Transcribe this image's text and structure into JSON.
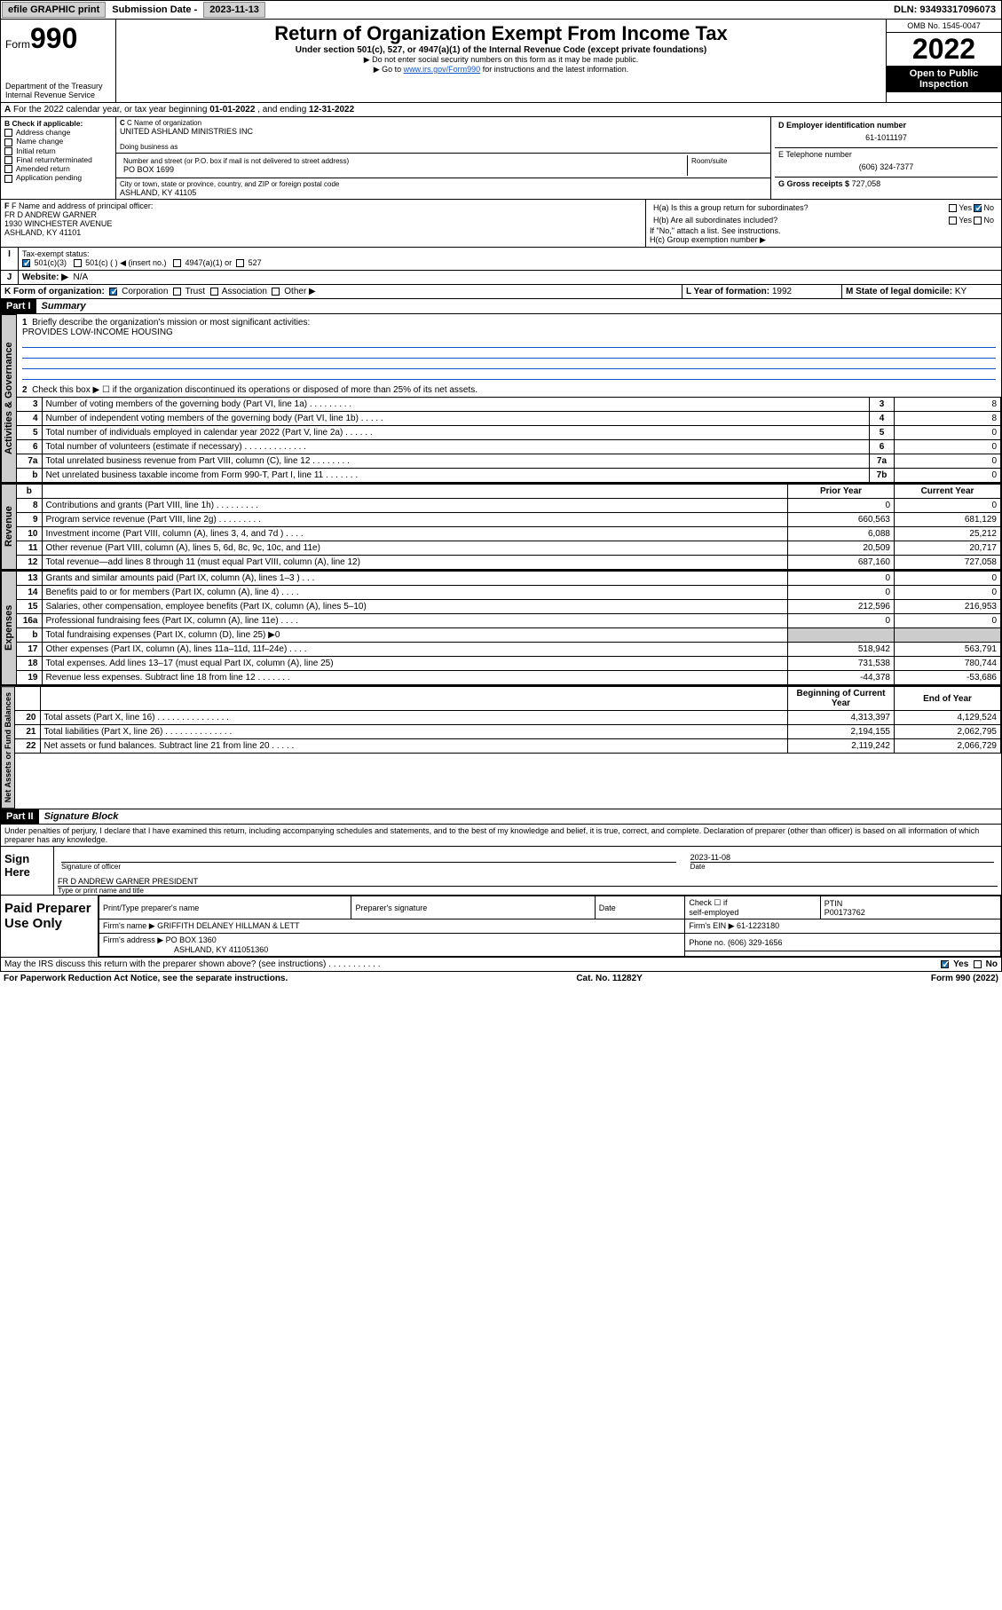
{
  "topbar": {
    "efile": "efile GRAPHIC print",
    "sub_label": "Submission Date -",
    "sub_date": "2023-11-13",
    "dln_label": "DLN:",
    "dln": "93493317096073"
  },
  "header": {
    "form_word": "Form",
    "form_num": "990",
    "title": "Return of Organization Exempt From Income Tax",
    "subtitle": "Under section 501(c), 527, or 4947(a)(1) of the Internal Revenue Code (except private foundations)",
    "note1": "▶ Do not enter social security numbers on this form as it may be made public.",
    "note2_pre": "▶ Go to ",
    "note2_link": "www.irs.gov/Form990",
    "note2_post": " for instructions and the latest information.",
    "dept": "Department of the Treasury",
    "irs": "Internal Revenue Service",
    "omb": "OMB No. 1545-0047",
    "year": "2022",
    "inspect": "Open to Public Inspection"
  },
  "A": {
    "text": "For the 2022 calendar year, or tax year beginning ",
    "begin": "01-01-2022",
    "mid": " , and ending ",
    "end": "12-31-2022"
  },
  "B": {
    "label": "B Check if applicable:",
    "opts": [
      "Address change",
      "Name change",
      "Initial return",
      "Final return/terminated",
      "Amended return",
      "Application pending"
    ]
  },
  "C": {
    "name_label": "C Name of organization",
    "name": "UNITED ASHLAND MINISTRIES INC",
    "dba_label": "Doing business as",
    "dba": "",
    "street_label": "Number and street (or P.O. box if mail is not delivered to street address)",
    "room_label": "Room/suite",
    "street": "PO BOX 1699",
    "city_label": "City or town, state or province, country, and ZIP or foreign postal code",
    "city": "ASHLAND, KY  41105"
  },
  "D": {
    "label": "D Employer identification number",
    "val": "61-1011197"
  },
  "E": {
    "label": "E Telephone number",
    "val": "(606) 324-7377"
  },
  "G": {
    "label": "G Gross receipts $",
    "val": "727,058"
  },
  "F": {
    "label": "F Name and address of principal officer:",
    "name": "FR D ANDREW GARNER",
    "street": "1930 WINCHESTER AVENUE",
    "city": "ASHLAND, KY  41101"
  },
  "H": {
    "a": "H(a)  Is this a group return for subordinates?",
    "a_yes": "Yes",
    "a_no": "No",
    "b": "H(b)  Are all subordinates included?",
    "b_yes": "Yes",
    "b_no": "No",
    "b_note": "If \"No,\" attach a list. See instructions.",
    "c": "H(c)  Group exemption number ▶"
  },
  "I": {
    "label": "Tax-exempt status:",
    "o1": "501(c)(3)",
    "o2": "501(c) (   ) ◀ (insert no.)",
    "o3": "4947(a)(1) or",
    "o4": "527"
  },
  "J": {
    "label": "Website: ▶",
    "val": "N/A"
  },
  "K": {
    "label": "K Form of organization:",
    "o1": "Corporation",
    "o2": "Trust",
    "o3": "Association",
    "o4": "Other ▶"
  },
  "L": {
    "label": "L Year of formation:",
    "val": "1992"
  },
  "M": {
    "label": "M State of legal domicile:",
    "val": "KY"
  },
  "parts": {
    "p1": "Part I",
    "p1t": "Summary",
    "p2": "Part II",
    "p2t": "Signature Block"
  },
  "tabs": {
    "act": "Activities & Governance",
    "rev": "Revenue",
    "exp": "Expenses",
    "net": "Net Assets or Fund Balances"
  },
  "summary": {
    "l1": "Briefly describe the organization's mission or most significant activities:",
    "mission": "PROVIDES LOW-INCOME HOUSING",
    "l2": "Check this box ▶ ☐  if the organization discontinued its operations or disposed of more than 25% of its net assets.",
    "hdr_prior": "Prior Year",
    "hdr_curr": "Current Year",
    "hdr_beg": "Beginning of Current Year",
    "hdr_end": "End of Year",
    "lines_single": [
      {
        "n": "3",
        "d": "Number of voting members of the governing body (Part VI, line 1a)   .    .    .    .    .    .    .    .    .",
        "b": "3",
        "v": "8"
      },
      {
        "n": "4",
        "d": "Number of independent voting members of the governing body (Part VI, line 1b)   .    .    .    .    .",
        "b": "4",
        "v": "8"
      },
      {
        "n": "5",
        "d": "Total number of individuals employed in calendar year 2022 (Part V, line 2a)   .    .    .    .    .    .",
        "b": "5",
        "v": "0"
      },
      {
        "n": "6",
        "d": "Total number of volunteers (estimate if necessary)   .    .    .    .    .    .    .    .    .    .    .    .    .",
        "b": "6",
        "v": "0"
      },
      {
        "n": "7a",
        "d": "Total unrelated business revenue from Part VIII, column (C), line 12   .    .    .    .    .    .    .    .",
        "b": "7a",
        "v": "0"
      },
      {
        "n": "b",
        "d": "Net unrelated business taxable income from Form 990-T, Part I, line 11   .    .    .    .    .    .    .",
        "b": "7b",
        "v": "0"
      }
    ],
    "lines_rev": [
      {
        "n": "8",
        "d": "Contributions and grants (Part VIII, line 1h)   .    .    .    .    .    .    .    .    .",
        "p": "0",
        "c": "0"
      },
      {
        "n": "9",
        "d": "Program service revenue (Part VIII, line 2g)   .    .    .    .    .    .    .    .    .",
        "p": "660,563",
        "c": "681,129"
      },
      {
        "n": "10",
        "d": "Investment income (Part VIII, column (A), lines 3, 4, and 7d )   .    .    .    .",
        "p": "6,088",
        "c": "25,212"
      },
      {
        "n": "11",
        "d": "Other revenue (Part VIII, column (A), lines 5, 6d, 8c, 9c, 10c, and 11e)",
        "p": "20,509",
        "c": "20,717"
      },
      {
        "n": "12",
        "d": "Total revenue—add lines 8 through 11 (must equal Part VIII, column (A), line 12)",
        "p": "687,160",
        "c": "727,058"
      }
    ],
    "lines_exp": [
      {
        "n": "13",
        "d": "Grants and similar amounts paid (Part IX, column (A), lines 1–3 )   .    .    .",
        "p": "0",
        "c": "0"
      },
      {
        "n": "14",
        "d": "Benefits paid to or for members (Part IX, column (A), line 4)   .    .    .    .",
        "p": "0",
        "c": "0"
      },
      {
        "n": "15",
        "d": "Salaries, other compensation, employee benefits (Part IX, column (A), lines 5–10)",
        "p": "212,596",
        "c": "216,953"
      },
      {
        "n": "16a",
        "d": "Professional fundraising fees (Part IX, column (A), line 11e)   .    .    .    .",
        "p": "0",
        "c": "0"
      },
      {
        "n": "b",
        "d": "Total fundraising expenses (Part IX, column (D), line 25) ▶0",
        "p": "",
        "c": "",
        "shade": true
      },
      {
        "n": "17",
        "d": "Other expenses (Part IX, column (A), lines 11a–11d, 11f–24e)   .    .    .    .",
        "p": "518,942",
        "c": "563,791"
      },
      {
        "n": "18",
        "d": "Total expenses. Add lines 13–17 (must equal Part IX, column (A), line 25)",
        "p": "731,538",
        "c": "780,744"
      },
      {
        "n": "19",
        "d": "Revenue less expenses. Subtract line 18 from line 12   .    .    .    .    .    .    .",
        "p": "-44,378",
        "c": "-53,686"
      }
    ],
    "lines_net": [
      {
        "n": "20",
        "d": "Total assets (Part X, line 16)   .    .    .    .    .    .    .    .    .    .    .    .    .    .    .",
        "p": "4,313,397",
        "c": "4,129,524"
      },
      {
        "n": "21",
        "d": "Total liabilities (Part X, line 26)   .    .    .    .    .    .    .    .    .    .    .    .    .    .",
        "p": "2,194,155",
        "c": "2,062,795"
      },
      {
        "n": "22",
        "d": "Net assets or fund balances. Subtract line 21 from line 20   .    .    .    .    .",
        "p": "2,119,242",
        "c": "2,066,729"
      }
    ]
  },
  "perjury": "Under penalties of perjury, I declare that I have examined this return, including accompanying schedules and statements, and to the best of my knowledge and belief, it is true, correct, and complete. Declaration of preparer (other than officer) is based on all information of which preparer has any knowledge.",
  "sign": {
    "lbl": "Sign Here",
    "sig_cap": "Signature of officer",
    "date_cap": "Date",
    "date": "2023-11-08",
    "name": "FR D ANDREW GARNER  PRESIDENT",
    "name_cap": "Type or print name and title"
  },
  "prep": {
    "lbl": "Paid Preparer Use Only",
    "h1": "Print/Type preparer's name",
    "h2": "Preparer's signature",
    "h3": "Date",
    "h4_a": "Check ☐ if",
    "h4_b": "self-employed",
    "h5": "PTIN",
    "ptin": "P00173762",
    "firm_lbl": "Firm's name    ▶",
    "firm": "GRIFFITH DELANEY HILLMAN & LETT",
    "ein_lbl": "Firm's EIN ▶",
    "ein": "61-1223180",
    "addr_lbl": "Firm's address ▶",
    "addr1": "PO BOX 1360",
    "addr2": "ASHLAND, KY  411051360",
    "phone_lbl": "Phone no.",
    "phone": "(606) 329-1656"
  },
  "discuss": {
    "q": "May the IRS discuss this return with the preparer shown above? (see instructions)   .    .    .    .    .    .    .    .    .    .    .",
    "yes": "Yes",
    "no": "No"
  },
  "footer": {
    "left": "For Paperwork Reduction Act Notice, see the separate instructions.",
    "mid": "Cat. No. 11282Y",
    "right": "Form 990 (2022)"
  }
}
